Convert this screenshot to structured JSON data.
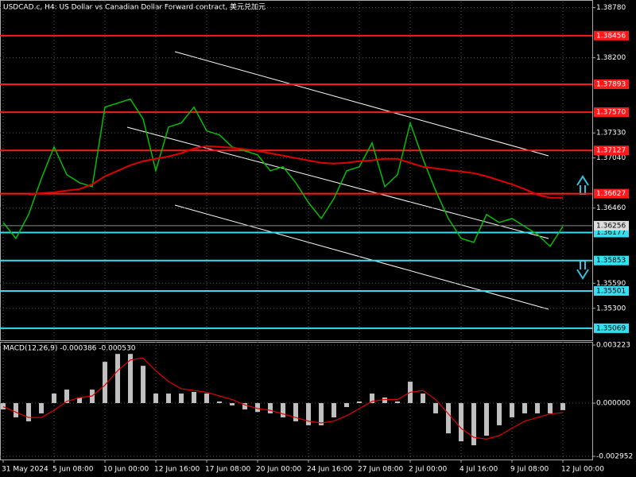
{
  "chart_data": [
    {
      "type": "line",
      "title": "USDCAD.c, H4:  US Dollar vs Canadian Dollar Forward contract, 美元兑加元",
      "categories": [
        "31 May 2024",
        null,
        null,
        null,
        "5 Jun 08:00",
        null,
        null,
        null,
        "10 Jun 00:00",
        null,
        null,
        null,
        "12 Jun 16:00",
        null,
        null,
        null,
        "17 Jun 08:00",
        null,
        null,
        null,
        "20 Jun 00:00",
        null,
        null,
        null,
        "24 Jun 16:00",
        null,
        null,
        null,
        "27 Jun 08:00",
        null,
        null,
        null,
        "2 Jul 00:00",
        null,
        null,
        null,
        "4 Jul 16:00",
        null,
        null,
        null,
        "9 Jul 08:00",
        null,
        null,
        null,
        "12 Jul 00:00"
      ],
      "series": [
        {
          "color": "#00c000",
          "values": [
            1.36293,
            1.36109,
            1.36385,
            1.368,
            1.37168,
            1.36846,
            1.36754,
            1.36708,
            1.37629,
            1.37675,
            1.37721,
            1.37491,
            1.36892,
            1.37399,
            1.37445,
            1.37629,
            1.37353,
            1.37307,
            1.37168,
            1.37122,
            1.37076,
            1.36892,
            1.36938,
            1.36754,
            1.36524,
            1.36339,
            1.3657,
            1.36892,
            1.36938,
            1.37214,
            1.36708,
            1.36846,
            1.37445,
            1.3703,
            1.36662,
            1.36339,
            1.36109,
            1.36063,
            1.36385,
            1.36293,
            1.36339,
            1.36247,
            1.36155,
            1.36017,
            1.36247
          ]
        },
        {
          "color": "#e00000",
          "values": [
            null,
            null,
            1.36616,
            1.36634,
            1.36643,
            1.36662,
            1.3668,
            1.36735,
            1.36828,
            1.36892,
            1.36956,
            1.37003,
            1.3703,
            1.37058,
            1.37095,
            1.3715,
            1.37178,
            1.37168,
            1.37159,
            1.37141,
            1.37122,
            1.37095,
            1.37067,
            1.37039,
            1.37012,
            1.36984,
            1.36975,
            1.36984,
            1.37003,
            1.37012,
            1.3703,
            1.3703,
            1.36984,
            1.36938,
            1.3692,
            1.36901,
            1.36883,
            1.36864,
            1.36828,
            1.36781,
            1.36735,
            1.3668,
            1.36616,
            1.36579,
            1.36579
          ]
        }
      ],
      "ylim": [
        1.3493,
        1.3885
      ],
      "yticks": [
        {
          "value": 1.3878,
          "label": "1.38780"
        },
        {
          "value": 1.382,
          "label": "1.38200"
        },
        {
          "value": 1.3733,
          "label": "1.37330"
        },
        {
          "value": 1.3704,
          "label": "1.37040"
        },
        {
          "value": 1.3646,
          "label": "1.36460"
        },
        {
          "value": 1.3559,
          "label": "1.35590"
        },
        {
          "value": 1.353,
          "label": "1.35300"
        }
      ],
      "levels": [
        {
          "value": 1.38456,
          "color": "#ff1a1a"
        },
        {
          "value": 1.37893,
          "color": "#ff1a1a"
        },
        {
          "value": 1.3757,
          "label": "1.37570",
          "color": "#ff1a1a"
        },
        {
          "value": 1.37127,
          "color": "#ff1a1a"
        },
        {
          "value": 1.36627,
          "color": "#ff1a1a"
        },
        {
          "value": 1.36177,
          "color": "#33e0f0"
        },
        {
          "value": 1.35853,
          "color": "#33e0f0"
        },
        {
          "value": 1.35501,
          "color": "#33e0f0"
        },
        {
          "value": 1.35069,
          "color": "#33e0f0"
        }
      ],
      "last_price": 1.36256,
      "grid": true
    },
    {
      "type": "bar",
      "title": "MACD(12,26,9) -0.000386 -0.000530",
      "series": [
        {
          "type": "bar",
          "color": "#c0c0c0",
          "values": [
            -0.00035,
            -0.00079,
            -0.00101,
            -0.00057,
            0.00053,
            0.00075,
            0.00031,
            0.00075,
            0.00229,
            0.00273,
            0.00273,
            0.00207,
            0.00053,
            0.00053,
            0.00053,
            0.00062,
            0.00053,
            9e-05,
            -0.00013,
            -0.00035,
            -0.00049,
            -0.00057,
            -0.00079,
            -0.00101,
            -0.00123,
            -0.00123,
            -0.00079,
            -0.00022,
            9e-05,
            0.00053,
            0.00031,
            9e-05,
            0.00119,
            0.00053,
            -0.00057,
            -0.00168,
            -0.00212,
            -0.00234,
            -0.00181,
            -0.00123,
            -0.00079,
            -0.00057,
            -0.00057,
            -0.00057,
            -0.00039
          ]
        },
        {
          "type": "line",
          "color": "#e00000",
          "values": [
            -0.0002,
            -0.0005,
            -0.0008,
            -0.0008,
            -0.0004,
            0.0001,
            0.0003,
            0.0004,
            0.001,
            0.0018,
            0.0024,
            0.0025,
            0.0018,
            0.0012,
            0.0008,
            0.0007,
            0.0006,
            0.0004,
            0.0002,
            -0.0001,
            -0.0003,
            -0.0004,
            -0.0006,
            -0.0008,
            -0.001,
            -0.0011,
            -0.001,
            -0.0007,
            -0.0003,
            0.0001,
            0.0002,
            0.0002,
            0.0006,
            0.0007,
            0.0002,
            -0.0006,
            -0.0014,
            -0.0019,
            -0.002,
            -0.0018,
            -0.0014,
            -0.001,
            -0.0008,
            -0.0006,
            -0.00053
          ]
        }
      ],
      "ylim": [
        -0.00313,
        0.0034
      ],
      "yticks": [
        0.003223,
        {
          "value": 0,
          "label": "0.000000"
        },
        -0.002952
      ],
      "grid": true
    }
  ]
}
